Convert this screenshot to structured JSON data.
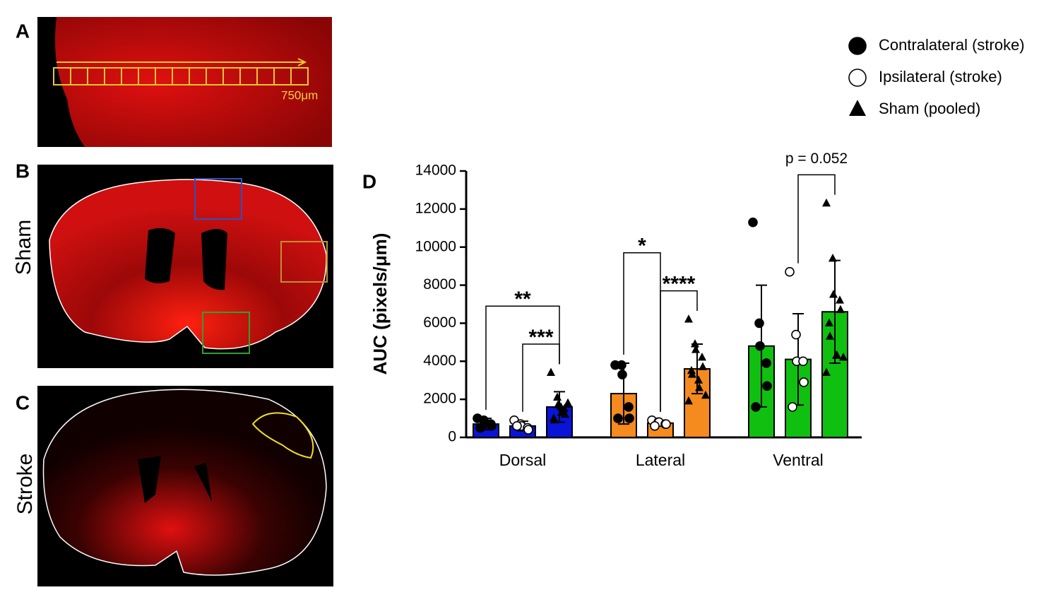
{
  "panels": {
    "a": {
      "label": "A",
      "scale": "750μm"
    },
    "b": {
      "label": "B",
      "side_label": "Sham"
    },
    "c": {
      "label": "C",
      "side_label": "Stroke"
    }
  },
  "chart_data": {
    "type": "bar",
    "panel_label": "D",
    "y_label": "AUC (pixels/μm)",
    "categories": [
      "Dorsal",
      "Lateral",
      "Ventral"
    ],
    "category_colors": [
      "#0a14d8",
      "#f58a1f",
      "#10c010"
    ],
    "ylim": [
      0,
      14000
    ],
    "yticks": [
      0,
      2000,
      4000,
      6000,
      8000,
      10000,
      12000,
      14000
    ],
    "legend": "top-right",
    "series": [
      {
        "name": "Contralateral (stroke)",
        "marker": "circle-filled",
        "values": [
          700,
          2300,
          4800
        ],
        "errors": [
          300,
          1600,
          3200
        ],
        "points": [
          [
            1000,
            900,
            800,
            700,
            600,
            500
          ],
          [
            3800,
            3800,
            3300,
            1600,
            1000,
            1000
          ],
          [
            11300,
            6000,
            4800,
            3900,
            2700,
            1600
          ]
        ]
      },
      {
        "name": "Ipsilateral (stroke)",
        "marker": "circle-open",
        "values": [
          600,
          750,
          4100
        ],
        "errors": [
          250,
          150,
          2400
        ],
        "points": [
          [
            900,
            700,
            600,
            500,
            400,
            600
          ],
          [
            900,
            800,
            800,
            700,
            700,
            600
          ],
          [
            8700,
            5400,
            4000,
            4000,
            2900,
            1600
          ]
        ]
      },
      {
        "name": "Sham (pooled)",
        "marker": "triangle",
        "values": [
          1600,
          3600,
          6600
        ],
        "errors": [
          800,
          1300,
          2700
        ],
        "points": [
          [
            3400,
            2100,
            1700,
            1500,
            1200,
            1000,
            900,
            1600,
            1300,
            1800
          ],
          [
            6200,
            4900,
            4600,
            4200,
            3700,
            3500,
            3300,
            3000,
            2600,
            2200,
            1900
          ],
          [
            12300,
            9400,
            7500,
            7200,
            6700,
            6000,
            5300,
            4300,
            4300,
            4200,
            3400
          ]
        ]
      }
    ],
    "annotations": [
      {
        "label": "***",
        "category": 0,
        "from": 1,
        "to": 2
      },
      {
        "label": "**",
        "category": 0,
        "from": 0,
        "to": 2
      },
      {
        "label": "****",
        "category": 1,
        "from": 1,
        "to": 2
      },
      {
        "label": "*",
        "category": 1,
        "from": 0,
        "to": 1
      },
      {
        "label": "p = 0.052",
        "category": 2,
        "from": 1,
        "to": 2
      }
    ]
  }
}
